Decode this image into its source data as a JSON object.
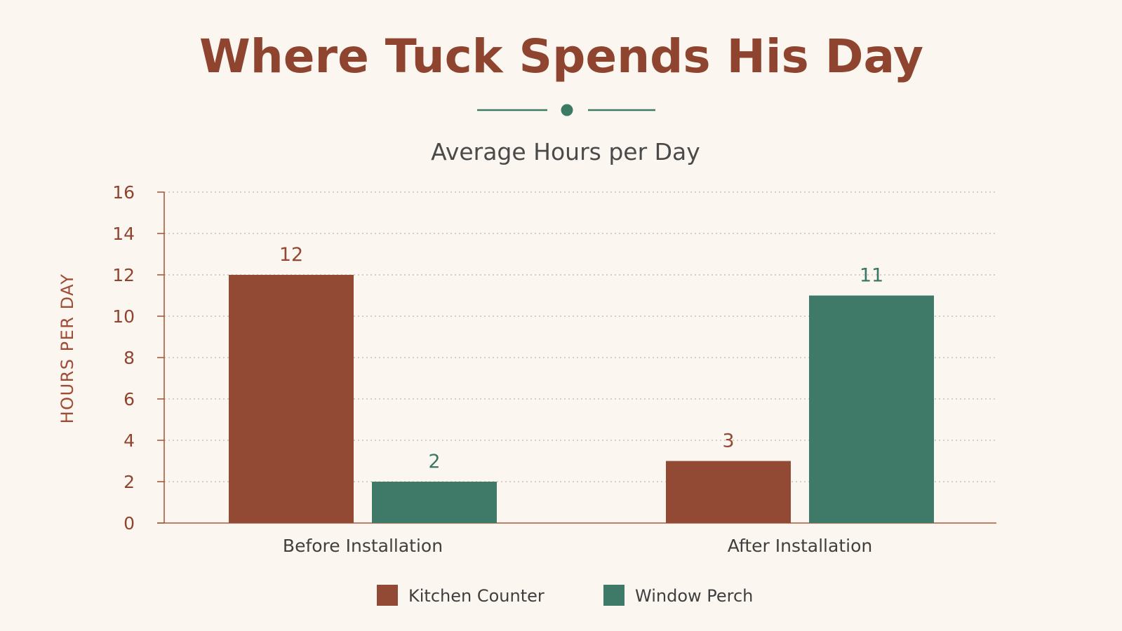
{
  "colors": {
    "background": "#fbf7f0",
    "title": "#8f4430",
    "divider": "#3c7a66",
    "axis": "#a8583f"
  },
  "chart_data": {
    "type": "bar",
    "title": "Where Tuck Spends His Day",
    "subtitle": "Average Hours per Day",
    "xlabel": "",
    "ylabel": "HOURS PER DAY",
    "ylim": [
      0,
      16
    ],
    "yticks": [
      0,
      2,
      4,
      6,
      8,
      10,
      12,
      14,
      16
    ],
    "grid": true,
    "legend_position": "bottom-center",
    "categories": [
      "Before Installation",
      "After Installation"
    ],
    "series": [
      {
        "name": "Kitchen Counter",
        "color": "#924a34",
        "values": [
          12,
          3
        ],
        "value_labels": [
          "12",
          "3"
        ],
        "label_color": "#924a34"
      },
      {
        "name": "Window Perch",
        "color": "#3f7a69",
        "values": [
          2,
          11
        ],
        "value_labels": [
          "2",
          "11"
        ],
        "label_color": "#3a7764"
      }
    ]
  }
}
